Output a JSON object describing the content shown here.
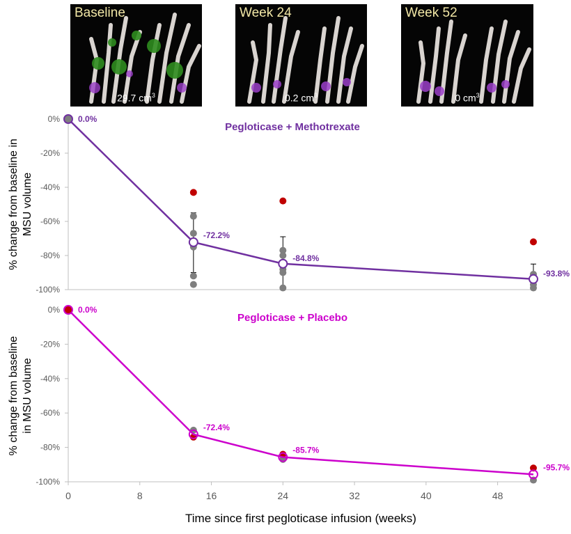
{
  "images": [
    {
      "label": "Baseline",
      "volume": "29.7 cm",
      "unit_sup": "3"
    },
    {
      "label": "Week 24",
      "volume": "0.2 cm",
      "unit_sup": "3"
    },
    {
      "label": "Week 52",
      "volume": "0 cm",
      "unit_sup": "3"
    }
  ],
  "xlabel": "Time since first pegloticase infusion (weeks)",
  "chart_data": [
    {
      "type": "line",
      "title": "Pegloticase + Methotrexate",
      "color": "#7030a0",
      "ylabel_lines": [
        "% change from baseline in",
        "MSU volume"
      ],
      "x_ticks": [
        0,
        8,
        16,
        24,
        32,
        40,
        48
      ],
      "xlim": [
        0,
        52
      ],
      "y_ticks": [
        0,
        -20,
        -40,
        -60,
        -80,
        -100
      ],
      "y_tick_labels": [
        "0%",
        "-20%",
        "-40%",
        "-60%",
        "-80%",
        "-100%"
      ],
      "ylim": [
        -100,
        0
      ],
      "series": [
        {
          "x": [
            0,
            14,
            24,
            52
          ],
          "y": [
            0.0,
            -72.2,
            -84.8,
            -93.8
          ],
          "labels": [
            "0.0%",
            "-72.2%",
            "-84.8%",
            "-93.8%"
          ]
        }
      ],
      "error_bars": [
        {
          "x": 14,
          "low": -90,
          "high": -55
        },
        {
          "x": 24,
          "low": -100,
          "high": -69
        },
        {
          "x": 52,
          "low": -100,
          "high": -85
        }
      ],
      "individual_points": [
        {
          "x": 0,
          "y": 0
        },
        {
          "x": 14,
          "y": -57
        },
        {
          "x": 14,
          "y": -67
        },
        {
          "x": 14,
          "y": -75
        },
        {
          "x": 14,
          "y": -92
        },
        {
          "x": 14,
          "y": -97
        },
        {
          "x": 24,
          "y": -77
        },
        {
          "x": 24,
          "y": -80
        },
        {
          "x": 24,
          "y": -88
        },
        {
          "x": 24,
          "y": -90
        },
        {
          "x": 24,
          "y": -99
        },
        {
          "x": 52,
          "y": -91
        },
        {
          "x": 52,
          "y": -97
        },
        {
          "x": 52,
          "y": -99
        }
      ],
      "highlight_points": [
        {
          "x": 14,
          "y": -43
        },
        {
          "x": 24,
          "y": -48
        },
        {
          "x": 52,
          "y": -72
        }
      ],
      "point_color": "#7f7f7f",
      "highlight_color": "#c00000"
    },
    {
      "type": "line",
      "title": "Pegloticase + Placebo",
      "color": "#cc00cc",
      "ylabel_lines": [
        "% change from baseline",
        "in MSU volume"
      ],
      "x_ticks": [
        0,
        8,
        16,
        24,
        32,
        40,
        48
      ],
      "xlim": [
        0,
        52
      ],
      "y_ticks": [
        0,
        -20,
        -40,
        -60,
        -80,
        -100
      ],
      "y_tick_labels": [
        "0%",
        "-20%",
        "-40%",
        "-60%",
        "-80%",
        "-100%"
      ],
      "ylim": [
        -100,
        0
      ],
      "series": [
        {
          "x": [
            0,
            14,
            24,
            52
          ],
          "y": [
            0.0,
            -72.4,
            -85.7,
            -95.7
          ],
          "labels": [
            "0.0%",
            "-72.4%",
            "-85.7%",
            "-95.7%"
          ]
        }
      ],
      "error_bars": [],
      "individual_points": [
        {
          "x": 14,
          "y": -70
        },
        {
          "x": 24,
          "y": -87
        },
        {
          "x": 52,
          "y": -99
        }
      ],
      "highlight_points": [
        {
          "x": 0,
          "y": 0
        },
        {
          "x": 14,
          "y": -74
        },
        {
          "x": 24,
          "y": -84
        },
        {
          "x": 52,
          "y": -92
        }
      ],
      "point_color": "#7f7f7f",
      "highlight_color": "#c00000"
    }
  ]
}
